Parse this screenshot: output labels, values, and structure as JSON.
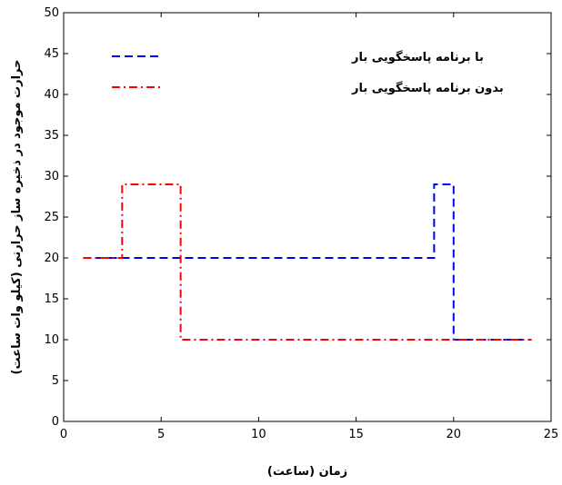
{
  "chart_data": {
    "type": "line",
    "step": true,
    "title": "",
    "xlabel": "زمان (ساعت)",
    "ylabel": "حرارت موجود در ذخیره ساز حرارتی (کیلو وات ساعت)",
    "xlim": [
      0,
      25
    ],
    "ylim": [
      0,
      50
    ],
    "xticks": [
      0,
      5,
      10,
      15,
      20,
      25
    ],
    "yticks": [
      0,
      5,
      10,
      15,
      20,
      25,
      30,
      35,
      40,
      45,
      50
    ],
    "grid": false,
    "legend_position": "top-left",
    "series": [
      {
        "name": "با برنامه پاسخگویی بار",
        "color": "#0000ff",
        "style": "dashed",
        "x": [
          1,
          19,
          19,
          20,
          20,
          24
        ],
        "y": [
          20,
          20,
          29,
          29,
          10,
          10
        ]
      },
      {
        "name": "بدون برنامه پاسخگویی بار",
        "color": "#ff0000",
        "style": "dash-dot",
        "x": [
          1,
          3,
          3,
          6,
          6,
          24
        ],
        "y": [
          20,
          20,
          29,
          29,
          10,
          10
        ]
      }
    ]
  }
}
